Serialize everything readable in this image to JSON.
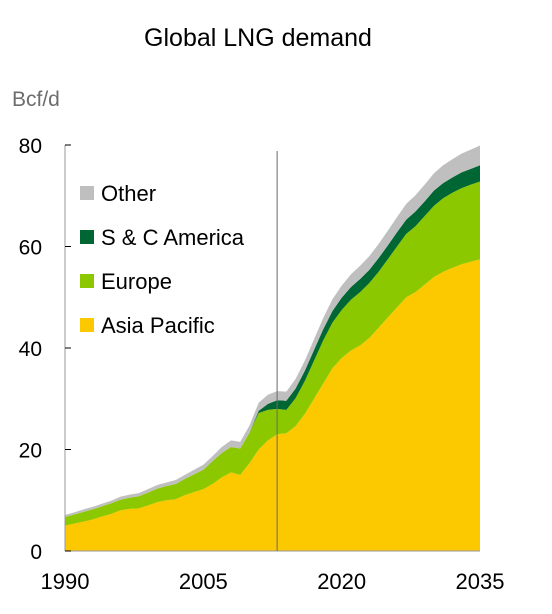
{
  "chart_data": {
    "type": "area",
    "stacked": true,
    "title": "Global LNG demand",
    "ylabel": "Bcf/d",
    "xlabel": "",
    "xlim": [
      1990,
      2035
    ],
    "ylim": [
      0,
      80
    ],
    "xticks": [
      "1990",
      "2005",
      "2020",
      "2035"
    ],
    "yticks": [
      "0",
      "20",
      "40",
      "60",
      "80"
    ],
    "grid": false,
    "legend_position": "top-left",
    "marker_line_x": 2013,
    "x": [
      1990,
      1991,
      1992,
      1993,
      1994,
      1995,
      1996,
      1997,
      1998,
      1999,
      2000,
      2001,
      2002,
      2003,
      2004,
      2005,
      2006,
      2007,
      2008,
      2009,
      2010,
      2011,
      2012,
      2013,
      2014,
      2015,
      2016,
      2017,
      2018,
      2019,
      2020,
      2021,
      2022,
      2023,
      2024,
      2025,
      2026,
      2027,
      2028,
      2029,
      2030,
      2031,
      2032,
      2033,
      2034,
      2035
    ],
    "series": [
      {
        "name": "Asia Pacific",
        "color": "#fcc800",
        "values": [
          5.0,
          5.4,
          5.8,
          6.2,
          6.8,
          7.3,
          8.0,
          8.3,
          8.4,
          9.0,
          9.6,
          10.0,
          10.2,
          11.0,
          11.6,
          12.2,
          13.2,
          14.5,
          15.5,
          15.0,
          17.3,
          20.0,
          21.8,
          23.0,
          23.2,
          24.6,
          27.0,
          30.0,
          33.0,
          36.0,
          38.0,
          39.5,
          40.5,
          42.0,
          44.0,
          46.0,
          48.0,
          50.0,
          51.0,
          52.5,
          54.0,
          55.0,
          55.8,
          56.5,
          57.0,
          57.5
        ]
      },
      {
        "name": "Europe",
        "color": "#8cc800",
        "values": [
          1.7,
          1.8,
          1.9,
          2.0,
          2.0,
          2.1,
          2.1,
          2.2,
          2.4,
          2.5,
          2.7,
          2.8,
          3.0,
          3.2,
          3.5,
          3.8,
          4.5,
          4.8,
          5.0,
          5.2,
          6.0,
          7.2,
          6.0,
          5.0,
          4.6,
          5.5,
          6.5,
          7.5,
          8.5,
          9.0,
          9.5,
          10.0,
          10.5,
          10.8,
          11.0,
          11.5,
          12.0,
          12.5,
          13.0,
          13.5,
          14.0,
          14.5,
          14.8,
          15.0,
          15.2,
          15.3
        ]
      },
      {
        "name": "S & C America",
        "color": "#006633",
        "values": [
          0,
          0,
          0,
          0,
          0,
          0,
          0,
          0,
          0,
          0,
          0,
          0,
          0,
          0,
          0,
          0,
          0,
          0,
          0,
          0,
          0,
          0.4,
          1.2,
          1.7,
          1.8,
          1.9,
          2.0,
          2.1,
          2.2,
          2.3,
          2.4,
          2.5,
          2.6,
          2.6,
          2.7,
          2.7,
          2.8,
          2.8,
          2.9,
          2.9,
          3.0,
          3.0,
          3.0,
          3.1,
          3.1,
          3.2
        ]
      },
      {
        "name": "Other",
        "color": "#bfbfbf",
        "values": [
          0.4,
          0.4,
          0.5,
          0.5,
          0.5,
          0.5,
          0.6,
          0.6,
          0.6,
          0.7,
          0.7,
          0.7,
          0.8,
          0.8,
          0.9,
          1.0,
          1.0,
          1.2,
          1.3,
          1.3,
          1.4,
          1.6,
          1.8,
          1.8,
          1.8,
          1.9,
          2.0,
          2.1,
          2.2,
          2.3,
          2.4,
          2.5,
          2.6,
          2.7,
          2.8,
          2.9,
          3.0,
          3.1,
          3.2,
          3.3,
          3.4,
          3.5,
          3.6,
          3.7,
          3.8,
          3.9
        ]
      }
    ]
  }
}
